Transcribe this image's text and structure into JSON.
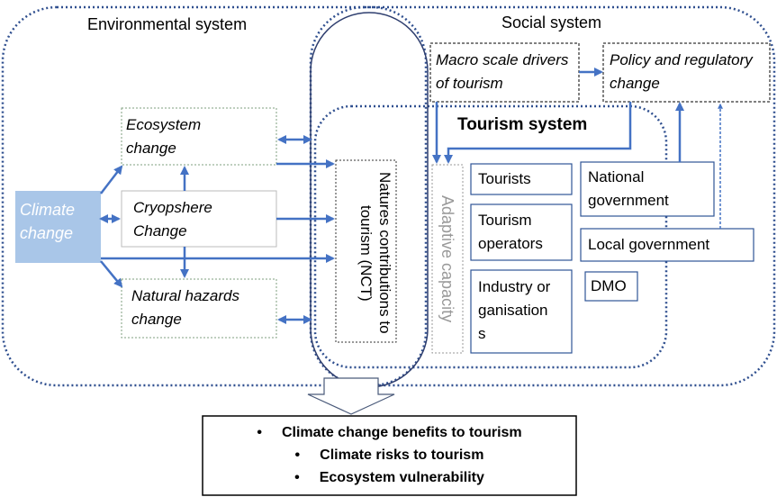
{
  "systems": {
    "environmental": "Environmental system",
    "social": "Social system",
    "tourism": "Tourism system"
  },
  "nodes": {
    "climate": "Climate change",
    "ecosystem": "Ecosystem change",
    "cryosphere": "Cryopshere Change",
    "hazards": "Natural hazards change",
    "nct": "Natures contributions to tourism (NCT)",
    "macro": "Macro scale drivers of tourism",
    "policy": "Policy and regulatory change",
    "adaptive": "Adaptive capacity",
    "tourists": "Tourists",
    "operators": "Tourism operators",
    "industry": "Industry organisations",
    "national": "National government",
    "local": "Local government",
    "dmo": "DMO"
  },
  "outcomes": [
    "Climate change benefits to tourism",
    "Climate risks to tourism",
    "Ecosystem vulnerability"
  ]
}
